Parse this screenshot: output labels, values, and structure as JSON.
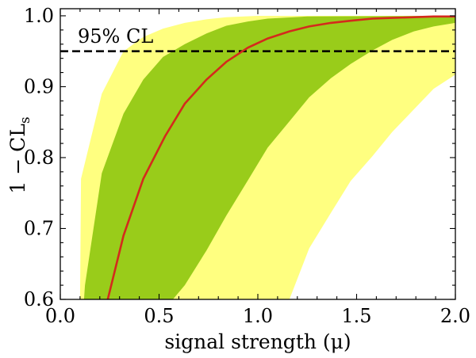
{
  "chart_data": {
    "type": "area",
    "xlabel": "signal strength (μ)",
    "ylabel": "1 − CL",
    "ylabel_sub": "s",
    "xlim": [
      0.0,
      2.0
    ],
    "ylim": [
      0.6,
      1.01
    ],
    "xticks": [
      0.0,
      0.5,
      1.0,
      1.5,
      2.0
    ],
    "xtick_labels": [
      "0.0",
      "0.5",
      "1.0",
      "1.5",
      "2.0"
    ],
    "yticks": [
      0.6,
      0.7,
      0.8,
      0.9,
      1.0
    ],
    "ytick_labels": [
      "0.6",
      "0.7",
      "0.8",
      "0.9",
      "1.0"
    ],
    "grid": false,
    "reference_line": {
      "y": 0.95,
      "style": "dashed",
      "color": "#000000",
      "label": "95% CL"
    },
    "band_2sigma": {
      "color": "#ffff80",
      "upper": [
        [
          0.1,
          0.6
        ],
        [
          0.105,
          0.77
        ],
        [
          0.21,
          0.89
        ],
        [
          0.32,
          0.95
        ],
        [
          0.42,
          0.97
        ],
        [
          0.52,
          0.982
        ],
        [
          0.63,
          0.99
        ],
        [
          0.74,
          0.995
        ],
        [
          0.84,
          0.998
        ],
        [
          1.0,
          1.0
        ],
        [
          2.0,
          1.0
        ]
      ],
      "lower": [
        [
          2.0,
          0.917
        ],
        [
          1.89,
          0.897
        ],
        [
          1.79,
          0.868
        ],
        [
          1.68,
          0.836
        ],
        [
          1.58,
          0.802
        ],
        [
          1.47,
          0.767
        ],
        [
          1.37,
          0.722
        ],
        [
          1.26,
          0.672
        ],
        [
          1.16,
          0.6
        ]
      ]
    },
    "band_1sigma": {
      "color": "#99cc1a",
      "upper": [
        [
          0.12,
          0.6
        ],
        [
          0.125,
          0.62
        ],
        [
          0.21,
          0.778
        ],
        [
          0.32,
          0.862
        ],
        [
          0.42,
          0.91
        ],
        [
          0.52,
          0.942
        ],
        [
          0.63,
          0.96
        ],
        [
          0.74,
          0.975
        ],
        [
          0.84,
          0.986
        ],
        [
          0.95,
          0.992
        ],
        [
          1.05,
          0.996
        ],
        [
          1.25,
          0.999
        ],
        [
          2.0,
          1.0
        ]
      ],
      "lower": [
        [
          2.0,
          0.99
        ],
        [
          1.89,
          0.985
        ],
        [
          1.79,
          0.978
        ],
        [
          1.68,
          0.966
        ],
        [
          1.58,
          0.951
        ],
        [
          1.47,
          0.932
        ],
        [
          1.37,
          0.912
        ],
        [
          1.26,
          0.885
        ],
        [
          1.16,
          0.851
        ],
        [
          1.05,
          0.814
        ],
        [
          0.95,
          0.768
        ],
        [
          0.84,
          0.718
        ],
        [
          0.74,
          0.669
        ],
        [
          0.63,
          0.62
        ],
        [
          0.57,
          0.6
        ]
      ]
    },
    "series": [
      {
        "color": "#d42a1c",
        "x": [
          0.24,
          0.32,
          0.42,
          0.53,
          0.63,
          0.74,
          0.84,
          0.95,
          1.05,
          1.16,
          1.26,
          1.37,
          1.47,
          1.58,
          1.68,
          1.79,
          1.89,
          2.0
        ],
        "y": [
          0.6,
          0.69,
          0.77,
          0.83,
          0.876,
          0.91,
          0.935,
          0.955,
          0.968,
          0.978,
          0.985,
          0.99,
          0.993,
          0.996,
          0.997,
          0.998,
          0.999,
          0.999
        ]
      }
    ]
  }
}
